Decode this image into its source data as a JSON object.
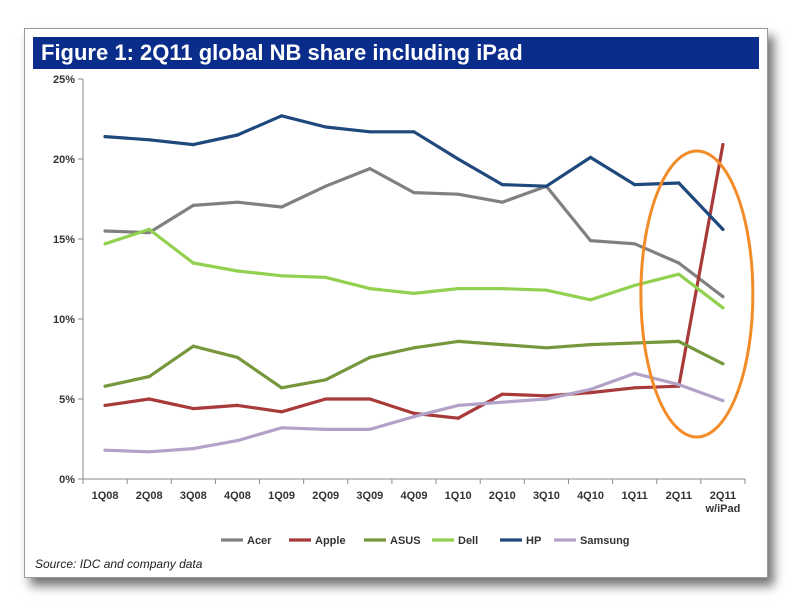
{
  "chart_data": {
    "type": "line",
    "title": "Figure 1: 2Q11 global NB share including iPad",
    "source": "Source: IDC and company data",
    "categories": [
      "1Q08",
      "2Q08",
      "3Q08",
      "4Q08",
      "1Q09",
      "2Q09",
      "3Q09",
      "4Q09",
      "1Q10",
      "2Q10",
      "3Q10",
      "4Q10",
      "1Q11",
      "2Q11",
      "2Q11 w/iPad"
    ],
    "ylim": [
      0,
      25
    ],
    "yticks": [
      0,
      5,
      10,
      15,
      20,
      25
    ],
    "ytick_labels": [
      "0%",
      "5%",
      "10%",
      "15%",
      "20%",
      "25%"
    ],
    "legend_position": "bottom",
    "series": [
      {
        "name": "Acer",
        "color": "#808080",
        "values": [
          15.5,
          15.4,
          17.1,
          17.3,
          17.0,
          18.3,
          19.4,
          17.9,
          17.8,
          17.3,
          18.3,
          14.9,
          14.7,
          13.5,
          11.4
        ]
      },
      {
        "name": "Apple",
        "color": "#a83a3a",
        "values": [
          4.6,
          5.0,
          4.4,
          4.6,
          4.2,
          5.0,
          5.0,
          4.1,
          3.8,
          5.3,
          5.2,
          5.4,
          5.7,
          5.8,
          20.9
        ]
      },
      {
        "name": "ASUS",
        "color": "#77973d",
        "values": [
          5.8,
          6.4,
          8.3,
          7.6,
          5.7,
          6.2,
          7.6,
          8.2,
          8.6,
          8.4,
          8.2,
          8.4,
          8.5,
          8.6,
          7.2
        ]
      },
      {
        "name": "Dell",
        "color": "#92d050",
        "values": [
          14.7,
          15.6,
          13.5,
          13.0,
          12.7,
          12.6,
          11.9,
          11.6,
          11.9,
          11.9,
          11.8,
          11.2,
          12.1,
          12.8,
          10.7
        ]
      },
      {
        "name": "HP",
        "color": "#1f497d",
        "values": [
          21.4,
          21.2,
          20.9,
          21.5,
          22.7,
          22.0,
          21.7,
          21.7,
          20.0,
          18.4,
          18.3,
          20.1,
          18.4,
          18.5,
          15.6
        ]
      },
      {
        "name": "Samsung",
        "color": "#b3a2c7",
        "values": [
          1.8,
          1.7,
          1.9,
          2.4,
          3.2,
          3.1,
          3.1,
          3.9,
          4.6,
          4.8,
          5.0,
          5.6,
          6.6,
          5.9,
          4.9
        ]
      }
    ],
    "annotation": "orange ellipse highlighting 2Q11 and 2Q11 w/iPad"
  },
  "colors": {
    "title_bar": "#0a2d8c",
    "annotation_ellipse": "#f28c28",
    "axis": "#888888"
  }
}
